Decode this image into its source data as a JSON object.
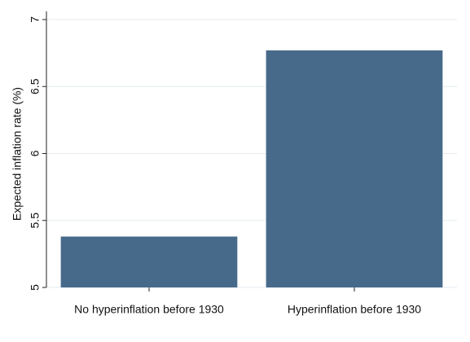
{
  "chart_data": {
    "type": "bar",
    "ylabel": "Expected inflation rate (%)",
    "categories": [
      "No hyperinflation before 1930",
      "Hyperinflation before 1930"
    ],
    "values": [
      5.38,
      6.77
    ],
    "color": "#476a8b",
    "ylim": [
      5,
      7
    ],
    "yticks": [
      5,
      5.5,
      6,
      6.5,
      7
    ],
    "grid": true
  }
}
